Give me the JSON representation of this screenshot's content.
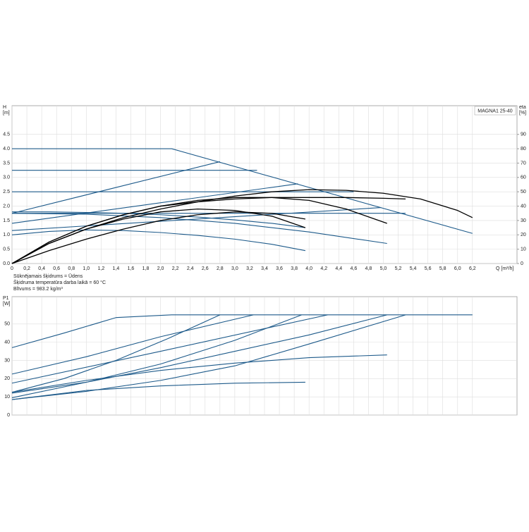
{
  "chart_data": [
    {
      "type": "line",
      "legend": "MAGNA1 25-40",
      "ylabel": "H",
      "yunit": "[m]",
      "y2label": "eta",
      "y2unit": "[%]",
      "xlabel": "Q [m³/h]",
      "xlim": [
        0,
        6.8
      ],
      "ylim": [
        0,
        5.5
      ],
      "y2lim": [
        0,
        110
      ],
      "grid": true,
      "xticks": [
        0,
        {
          "value": 0.2,
          "label": "0,2"
        },
        {
          "value": 0.4,
          "label": "0,4"
        },
        {
          "value": 0.6,
          "label": "0,6"
        },
        {
          "value": 0.8,
          "label": "0,8"
        },
        {
          "value": 1,
          "label": "1,0"
        },
        {
          "value": 1.2,
          "label": "1,2"
        },
        {
          "value": 1.4,
          "label": "1,4"
        },
        {
          "value": 1.6,
          "label": "1,6"
        },
        {
          "value": 1.8,
          "label": "1,8"
        },
        {
          "value": 2,
          "label": "2,0"
        },
        {
          "value": 2.2,
          "label": "2,2"
        },
        {
          "value": 2.4,
          "label": "2,4"
        },
        {
          "value": 2.6,
          "label": "2,6"
        },
        {
          "value": 2.8,
          "label": "2,8"
        },
        {
          "value": 3,
          "label": "3,0"
        },
        {
          "value": 3.2,
          "label": "3,2"
        },
        {
          "value": 3.4,
          "label": "3,4"
        },
        {
          "value": 3.6,
          "label": "3,6"
        },
        {
          "value": 3.8,
          "label": "3,8"
        },
        {
          "value": 4,
          "label": "4,0"
        },
        {
          "value": 4.2,
          "label": "4,2"
        },
        {
          "value": 4.4,
          "label": "4,4"
        },
        {
          "value": 4.6,
          "label": "4,6"
        },
        {
          "value": 4.8,
          "label": "4,8"
        },
        {
          "value": 5,
          "label": "5,0"
        },
        {
          "value": 5.2,
          "label": "5,2"
        },
        {
          "value": 5.4,
          "label": "5,4"
        },
        {
          "value": 5.6,
          "label": "5,6"
        },
        {
          "value": 5.8,
          "label": "5,8"
        },
        {
          "value": 6,
          "label": "6,0"
        },
        {
          "value": 6.2,
          "label": "6,2"
        }
      ],
      "yticks": [
        {
          "value": 0,
          "label": "0.0"
        },
        0.5,
        {
          "value": 1,
          "label": "1.0"
        },
        1.5,
        {
          "value": 2,
          "label": "2.0"
        },
        2.5,
        {
          "value": 3,
          "label": "3.0"
        },
        3.5,
        {
          "value": 4,
          "label": "4.0"
        },
        4.5
      ],
      "y2ticks": [
        0,
        10,
        20,
        30,
        40,
        50,
        60,
        70,
        80,
        90
      ],
      "series": [
        {
          "color": "#1d5a8a",
          "x": [
            0,
            2.15,
            6.2
          ],
          "values": [
            4.0,
            4.0,
            1.05
          ]
        },
        {
          "color": "#1d5a8a",
          "x": [
            0,
            3.3
          ],
          "values": [
            3.25,
            3.25
          ]
        },
        {
          "color": "#1d5a8a",
          "x": [
            0,
            4.6
          ],
          "values": [
            2.5,
            2.5
          ]
        },
        {
          "color": "#1d5a8a",
          "x": [
            0,
            2.8
          ],
          "values": [
            1.75,
            3.55
          ]
        },
        {
          "color": "#1d5a8a",
          "x": [
            0,
            3.85
          ],
          "values": [
            1.4,
            2.78
          ]
        },
        {
          "color": "#1d5a8a",
          "x": [
            0,
            4.97
          ],
          "values": [
            1.15,
            1.95
          ]
        },
        {
          "color": "#1d5a8a",
          "x": [
            0,
            5.3
          ],
          "values": [
            1.75,
            1.75
          ]
        },
        {
          "color": "#1d5a8a",
          "x": [
            0,
            0.5,
            1,
            1.5,
            2,
            2.5,
            3,
            3.5,
            3.95
          ],
          "values": [
            1.8,
            1.8,
            1.78,
            1.75,
            1.7,
            1.62,
            1.52,
            1.4,
            1.25
          ]
        },
        {
          "color": "#1d5a8a",
          "x": [
            0,
            1,
            2,
            3,
            4,
            5.05
          ],
          "values": [
            1.75,
            1.72,
            1.6,
            1.4,
            1.1,
            0.7
          ]
        },
        {
          "color": "#1d5a8a",
          "x": [
            0,
            0.5,
            1,
            1.5,
            2,
            2.5,
            3,
            3.5,
            3.95
          ],
          "values": [
            1.0,
            1.12,
            1.17,
            1.15,
            1.08,
            0.98,
            0.85,
            0.67,
            0.45
          ]
        },
        {
          "color": "#000000",
          "axis": "y2",
          "x": [
            0,
            0.5,
            1,
            1.5,
            2,
            2.5,
            3,
            3.5,
            4,
            4.5,
            5,
            5.5,
            6,
            6.2
          ],
          "values": [
            0,
            14,
            24,
            32,
            38,
            43,
            47,
            50,
            51.5,
            51,
            49,
            45,
            37,
            32
          ]
        },
        {
          "color": "#000000",
          "axis": "y2",
          "x": [
            0,
            0.5,
            1,
            1.5,
            2,
            2.5,
            3,
            3.5,
            4,
            4.5,
            5.05
          ],
          "values": [
            0,
            15,
            26,
            34,
            40,
            44,
            46,
            46,
            44,
            38,
            28
          ]
        },
        {
          "color": "#000000",
          "axis": "y2",
          "x": [
            0,
            0.5,
            1,
            1.5,
            2,
            2.5,
            3,
            3.5,
            4,
            4.5,
            5,
            5.3
          ],
          "values": [
            0,
            15,
            26,
            34,
            40,
            43,
            45,
            46,
            46,
            46,
            45.5,
            45
          ]
        },
        {
          "color": "#000000",
          "axis": "y2",
          "x": [
            0,
            0.5,
            1,
            1.5,
            2,
            2.5,
            3,
            3.5,
            3.95
          ],
          "values": [
            0,
            14,
            24,
            31,
            36,
            38,
            37,
            33,
            25
          ]
        },
        {
          "color": "#000000",
          "axis": "y2",
          "x": [
            0,
            0.5,
            1,
            1.5,
            2,
            2.5,
            3,
            3.5,
            3.95
          ],
          "values": [
            0,
            9,
            17,
            24,
            30,
            34,
            36,
            35,
            31
          ]
        }
      ],
      "notes": [
        "Sūknējamais šķidrums = Ūdens",
        "Šķidruma temperatūra darba laikā = 60 °C",
        "Blīvums = 983.2 kg/m³"
      ]
    },
    {
      "type": "line",
      "ylabel": "P1",
      "yunit": "[W]",
      "xlim": [
        0,
        6.8
      ],
      "ylim": [
        0,
        65
      ],
      "grid": true,
      "xticks": [
        0,
        0.2,
        0.4,
        0.6,
        0.8,
        1,
        1.2,
        1.4,
        1.6,
        1.8,
        2,
        2.2,
        2.4,
        2.6,
        2.8,
        3,
        3.2,
        3.4,
        3.6,
        3.8,
        4,
        4.2,
        4.4,
        4.6,
        4.8,
        5,
        5.2,
        5.4,
        5.6,
        5.8,
        6,
        6.2
      ],
      "yticks": [
        0,
        10,
        20,
        30,
        40,
        50
      ],
      "series": [
        {
          "color": "#1d5a8a",
          "x": [
            0,
            0.7,
            1.4,
            2.15,
            6.2
          ],
          "values": [
            37,
            45,
            53.5,
            55,
            55
          ]
        },
        {
          "color": "#1d5a8a",
          "x": [
            0,
            1,
            2,
            3.25
          ],
          "values": [
            22.5,
            32,
            43,
            55
          ]
        },
        {
          "color": "#1d5a8a",
          "x": [
            0,
            2,
            4.25
          ],
          "values": [
            17.5,
            35,
            55
          ]
        },
        {
          "color": "#1d5a8a",
          "x": [
            0,
            0.7,
            1.4,
            2.1,
            2.8
          ],
          "values": [
            12.5,
            20,
            30,
            42,
            55
          ]
        },
        {
          "color": "#1d5a8a",
          "x": [
            0,
            1,
            2,
            3,
            3.9
          ],
          "values": [
            9.5,
            18,
            28,
            41,
            55
          ]
        },
        {
          "color": "#1d5a8a",
          "x": [
            0,
            1,
            2,
            3,
            4,
            5.05
          ],
          "values": [
            12,
            18,
            26,
            35,
            44,
            55
          ]
        },
        {
          "color": "#1d5a8a",
          "x": [
            0,
            1,
            2,
            3,
            4,
            5.3
          ],
          "values": [
            8.5,
            13,
            19,
            27,
            39,
            55
          ]
        },
        {
          "color": "#1d5a8a",
          "x": [
            0,
            1,
            2,
            3,
            4,
            5.05
          ],
          "values": [
            12.5,
            19,
            24.5,
            28.5,
            31.5,
            33
          ]
        },
        {
          "color": "#1d5a8a",
          "x": [
            0,
            1,
            2,
            3,
            3.95
          ],
          "values": [
            8.5,
            13.5,
            16,
            17.5,
            18
          ]
        }
      ]
    }
  ]
}
